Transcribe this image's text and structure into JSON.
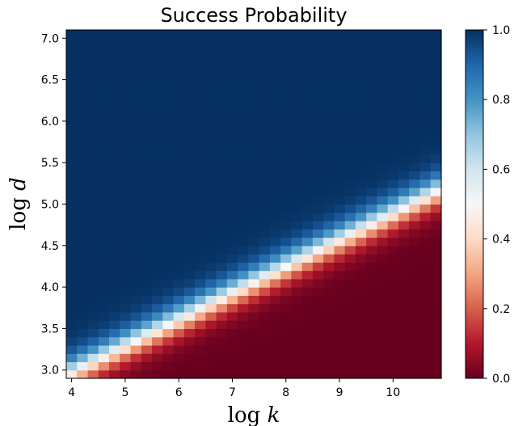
{
  "chart_data": {
    "type": "heatmap",
    "title": "Success Probability",
    "xlabel": "log k",
    "xlabel_func": "log",
    "xlabel_var": "k",
    "ylabel": "log d",
    "ylabel_func": "log",
    "ylabel_var": "d",
    "xlim": [
      3.9,
      10.9
    ],
    "ylim": [
      2.9,
      7.1
    ],
    "x_ticks": [
      4,
      5,
      6,
      7,
      8,
      9,
      10
    ],
    "x_tick_labels": [
      "4",
      "5",
      "6",
      "7",
      "8",
      "9",
      "10"
    ],
    "y_ticks": [
      3.0,
      3.5,
      4.0,
      4.5,
      5.0,
      5.5,
      6.0,
      6.5,
      7.0
    ],
    "y_tick_labels": [
      "3.0",
      "3.5",
      "4.0",
      "4.5",
      "5.0",
      "5.5",
      "6.0",
      "6.5",
      "7.0"
    ],
    "grid": {
      "x_start": 3.9,
      "x_step": 0.2,
      "nx": 35,
      "y_start": 2.9,
      "y_step": 0.1,
      "ny": 42,
      "transition_center": {
        "intercept": 1.69,
        "slope": 0.32
      },
      "transition_width": 0.11
    },
    "colorbar": {
      "colormap": "RdBu",
      "range": [
        0.0,
        1.0
      ],
      "ticks": [
        0.0,
        0.2,
        0.4,
        0.6,
        0.8,
        1.0
      ],
      "tick_labels": [
        "0.0",
        "0.2",
        "0.4",
        "0.6",
        "0.8",
        "1.0"
      ]
    }
  },
  "colors": {
    "rdbu": [
      "#67001f",
      "#b2182b",
      "#d6604d",
      "#f4a582",
      "#fddbc7",
      "#f7f7f7",
      "#d1e5f0",
      "#92c5de",
      "#4393c3",
      "#2166ac",
      "#053061"
    ]
  }
}
